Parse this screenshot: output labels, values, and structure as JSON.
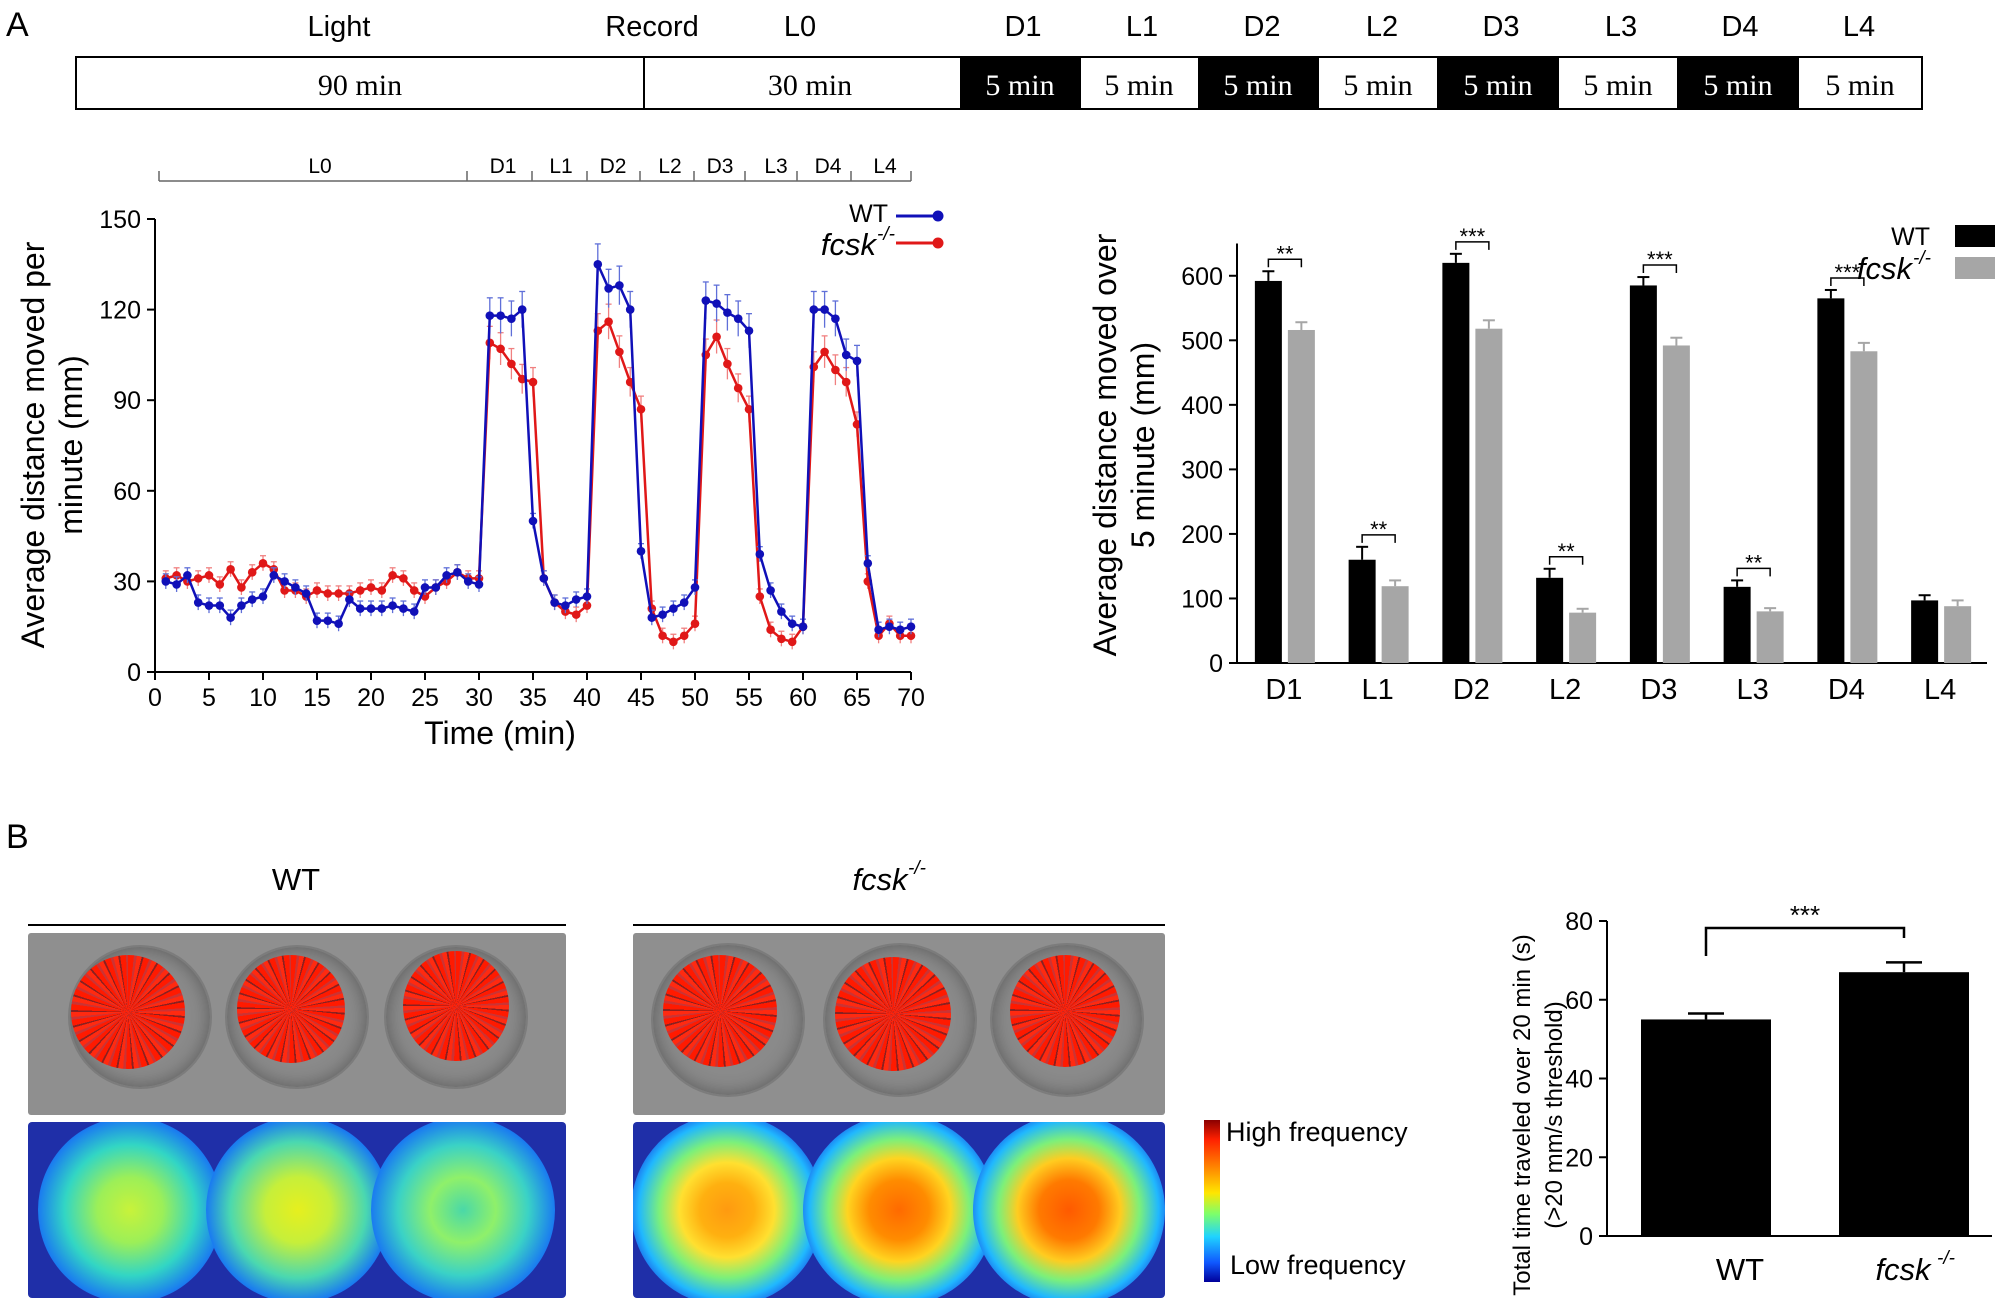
{
  "panel_labels": {
    "a": "A",
    "b": "B"
  },
  "timeline": {
    "header": [
      "Light",
      "Record",
      "L0",
      "D1",
      "L1",
      "D2",
      "L2",
      "D3",
      "L3",
      "D4",
      "L4"
    ],
    "cells": [
      "90 min",
      "30 min",
      "5 min",
      "5 min",
      "5 min",
      "5 min",
      "5 min",
      "5 min",
      "5 min",
      "5 min"
    ]
  },
  "phase_bracket": [
    "L0",
    "D1",
    "L1",
    "D2",
    "L2",
    "D3",
    "L3",
    "D4",
    "L4"
  ],
  "colors": {
    "wt_line": "#1010b8",
    "ko_line": "#e01818",
    "wt_bar": "#000000",
    "ko_bar": "#a6a6a6",
    "error_bar_wt": "#5f6fd8",
    "error_bar_ko": "#f08080"
  },
  "chart_data": [
    {
      "type": "line",
      "xlabel": "Time (min)",
      "ylabel": "Average distance moved per minute (mm)",
      "ylabel_lines": [
        "Average distance moved per",
        "minute (mm)"
      ],
      "xlim": [
        0,
        70
      ],
      "ylim": [
        0,
        150
      ],
      "xticks": [
        0,
        5,
        10,
        15,
        20,
        25,
        30,
        35,
        40,
        45,
        50,
        55,
        60,
        65,
        70
      ],
      "yticks": [
        0,
        30,
        60,
        90,
        120,
        150
      ],
      "x": [
        1,
        2,
        3,
        4,
        5,
        6,
        7,
        8,
        9,
        10,
        11,
        12,
        13,
        14,
        15,
        16,
        17,
        18,
        19,
        20,
        21,
        22,
        23,
        24,
        25,
        26,
        27,
        28,
        29,
        30,
        31,
        32,
        33,
        34,
        35,
        36,
        37,
        38,
        39,
        40,
        41,
        42,
        43,
        44,
        45,
        46,
        47,
        48,
        49,
        50,
        51,
        52,
        53,
        54,
        55,
        56,
        57,
        58,
        59,
        60,
        61,
        62,
        63,
        64,
        65,
        66,
        67,
        68,
        69,
        70
      ],
      "series": [
        {
          "name": "WT",
          "values": [
            30,
            29,
            32,
            23,
            22,
            22,
            18,
            22,
            24,
            25,
            32,
            30,
            28,
            26,
            17,
            17,
            16,
            24,
            21,
            21,
            21,
            22,
            21,
            20,
            28,
            28,
            32,
            33,
            30,
            29,
            118,
            118,
            117,
            120,
            50,
            31,
            23,
            22,
            24,
            25,
            135,
            127,
            128,
            120,
            40,
            18,
            19,
            21,
            23,
            28,
            123,
            122,
            119,
            117,
            113,
            39,
            27,
            20,
            16,
            15,
            120,
            120,
            117,
            105,
            103,
            36,
            14,
            15,
            14,
            15
          ]
        },
        {
          "name": "fcsk",
          "name_sup": "-/-",
          "values": [
            31,
            32,
            30,
            31,
            32,
            29,
            34,
            28,
            33,
            36,
            34,
            27,
            27,
            25,
            27,
            26,
            26,
            26,
            27,
            28,
            27,
            32,
            31,
            27,
            25,
            28,
            30,
            33,
            31,
            31,
            109,
            107,
            102,
            97,
            96,
            31,
            23,
            20,
            19,
            22,
            113,
            116,
            106,
            96,
            87,
            21,
            12,
            10,
            12,
            16,
            105,
            111,
            102,
            94,
            87,
            25,
            14,
            11,
            10,
            15,
            101,
            106,
            100,
            96,
            82,
            30,
            12,
            16,
            12,
            12
          ]
        }
      ],
      "legend": "top-right"
    },
    {
      "type": "bar",
      "categories": [
        "D1",
        "L1",
        "D2",
        "L2",
        "D3",
        "L3",
        "D4",
        "L4"
      ],
      "ylabel": "Average distance moved over 5 minute (mm)",
      "ylabel_lines": [
        "Average distance moved over",
        "5 minute (mm)"
      ],
      "ylim": [
        0,
        650
      ],
      "yticks": [
        0,
        100,
        200,
        300,
        400,
        500,
        600
      ],
      "series": [
        {
          "name": "WT",
          "values": [
            592,
            160,
            620,
            132,
            585,
            118,
            565,
            97
          ],
          "errors": [
            15,
            20,
            14,
            14,
            13,
            10,
            13,
            8
          ]
        },
        {
          "name": "fcsk",
          "name_sup": "-/-",
          "values": [
            516,
            119,
            518,
            78,
            492,
            80,
            483,
            88
          ],
          "errors": [
            12,
            9,
            13,
            6,
            12,
            5,
            13,
            9
          ]
        }
      ],
      "significance": [
        "**",
        "**",
        "***",
        "**",
        "***",
        "**",
        "***",
        ""
      ],
      "legend": "top-right"
    },
    {
      "type": "bar",
      "categories": [
        "WT",
        "fcsk"
      ],
      "category_sups": [
        "",
        "-/-"
      ],
      "values": [
        55,
        67
      ],
      "errors": [
        1.5,
        2.5
      ],
      "ylabel": "Total time  traveled over 20 min (s) (>20 mm/s threshold)",
      "ylabel_lines": [
        "Total time  traveled over 20 min (s)",
        "(>20 mm/s threshold)"
      ],
      "ylim": [
        0,
        80
      ],
      "yticks": [
        0,
        20,
        40,
        60,
        80
      ],
      "significance": "***"
    }
  ],
  "panel_b": {
    "group_labels": [
      {
        "text": "WT",
        "sup": ""
      },
      {
        "text": "fcsk",
        "sup": "-/-"
      }
    ],
    "colorbar": {
      "high": "High frequency",
      "low": "Low frequency"
    }
  }
}
